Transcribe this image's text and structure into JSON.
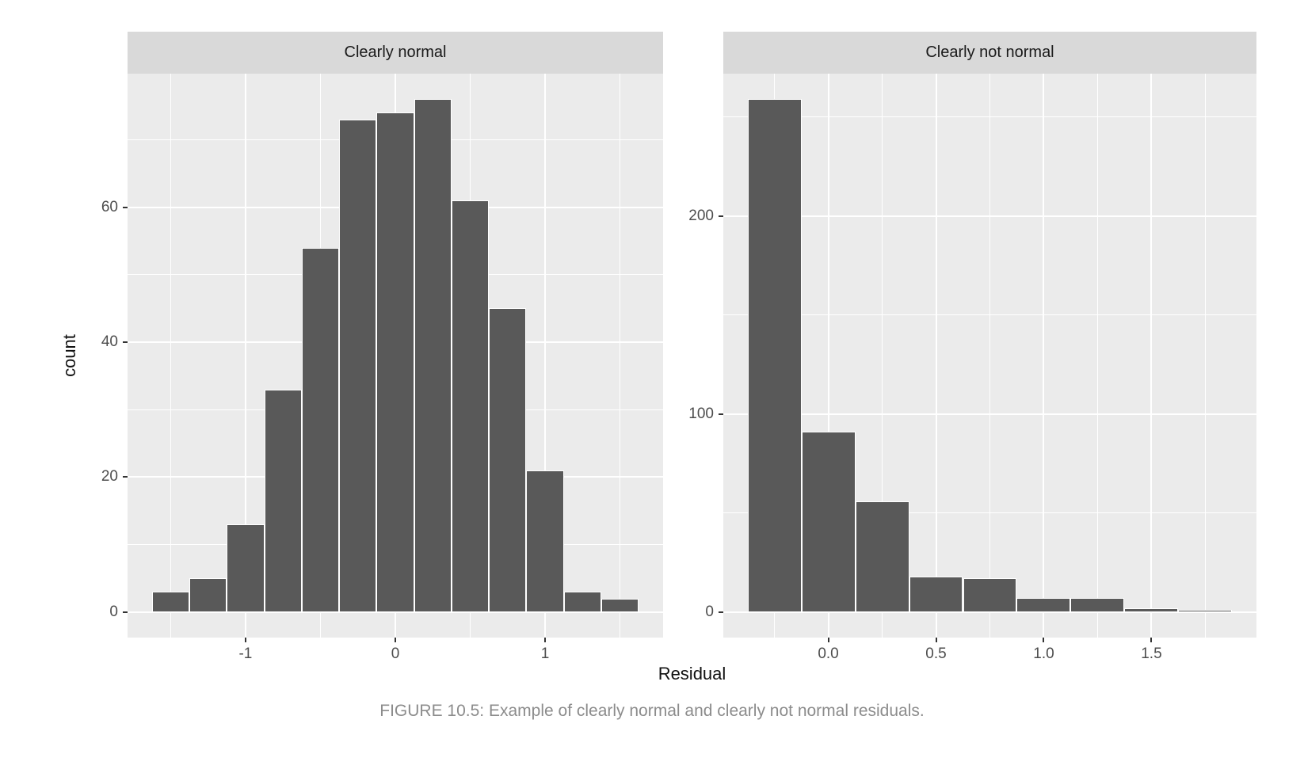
{
  "figure": {
    "xlabel": "Residual",
    "ylabel": "count",
    "caption": "FIGURE 10.5: Example of clearly normal and clearly not normal residuals."
  },
  "colors": {
    "bar_fill": "#595959",
    "bar_border": "#FFFFFF",
    "panel_background": "#EBEBEB",
    "strip_background": "#D9D9D9",
    "grid_line": "#FFFFFF",
    "tick_label": "#4D4D4D",
    "axis_title": "#111111",
    "caption_text": "#8C8C8C",
    "tick_mark": "#333333"
  },
  "chart_data": [
    {
      "type": "bar",
      "panel_title": "Clearly normal",
      "xlabel": "Residual",
      "ylabel": "count",
      "bin_width": 0.25,
      "bin_centers": [
        -1.5,
        -1.25,
        -1.0,
        -0.75,
        -0.5,
        -0.25,
        0.0,
        0.25,
        0.5,
        0.75,
        1.0,
        1.25,
        1.5
      ],
      "values": [
        3,
        5,
        13,
        33,
        54,
        73,
        74,
        76,
        61,
        45,
        21,
        3,
        2
      ],
      "x_ticks": [
        -1,
        0,
        1
      ],
      "x_tick_labels": [
        "-1",
        "0",
        "1"
      ],
      "x_minor_ticks": [
        -1.5,
        -0.5,
        0.5,
        1.5
      ],
      "y_ticks": [
        0,
        20,
        40,
        60
      ],
      "y_tick_labels": [
        "0",
        "20",
        "40",
        "60"
      ],
      "y_minor_ticks": [
        10,
        30,
        50,
        70
      ],
      "xlim": [
        -1.7875,
        1.7875
      ],
      "ylim": [
        -3.8,
        79.8
      ],
      "grid": true,
      "legend": "none"
    },
    {
      "type": "bar",
      "panel_title": "Clearly not normal",
      "xlabel": "Residual",
      "ylabel": "count",
      "bin_width": 0.25,
      "bin_centers": [
        -0.25,
        0.0,
        0.25,
        0.5,
        0.75,
        1.0,
        1.25,
        1.5,
        1.75
      ],
      "values": [
        259,
        91,
        56,
        18,
        17,
        7,
        7,
        2,
        1
      ],
      "x_ticks": [
        0.0,
        0.5,
        1.0,
        1.5
      ],
      "x_tick_labels": [
        "0.0",
        "0.5",
        "1.0",
        "1.5"
      ],
      "x_minor_ticks": [
        -0.25,
        0.25,
        0.75,
        1.25,
        1.75
      ],
      "y_ticks": [
        0,
        100,
        200
      ],
      "y_tick_labels": [
        "0",
        "100",
        "200"
      ],
      "y_minor_ticks": [
        50,
        150,
        250
      ],
      "xlim": [
        -0.4875,
        1.9875
      ],
      "ylim": [
        -12.95,
        271.95
      ],
      "grid": true,
      "legend": "none"
    }
  ]
}
